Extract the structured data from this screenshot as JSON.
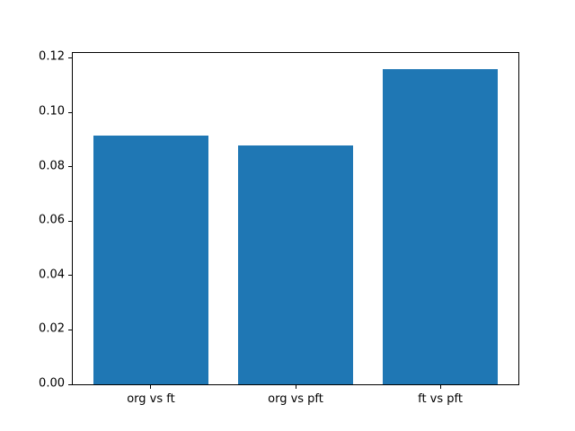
{
  "figure": {
    "background_color": "#ffffff",
    "spine_color": "#000000"
  },
  "chart_data": {
    "type": "bar",
    "title": "",
    "xlabel": "",
    "ylabel": "",
    "categories": [
      "org vs ft",
      "org vs pft",
      "ft vs pft"
    ],
    "values": [
      0.0915,
      0.0877,
      0.1158
    ],
    "bar_color": "#1f77b4",
    "ylim": [
      0,
      0.1218
    ],
    "yticks": [
      0.0,
      0.02,
      0.04,
      0.06,
      0.08,
      0.1,
      0.12
    ],
    "ytick_format_decimals": 2,
    "grid": false,
    "legend": null,
    "bar_width_fraction": 0.8,
    "x_positions": [
      0,
      1,
      2
    ],
    "xlim": [
      -0.54,
      2.54
    ]
  }
}
